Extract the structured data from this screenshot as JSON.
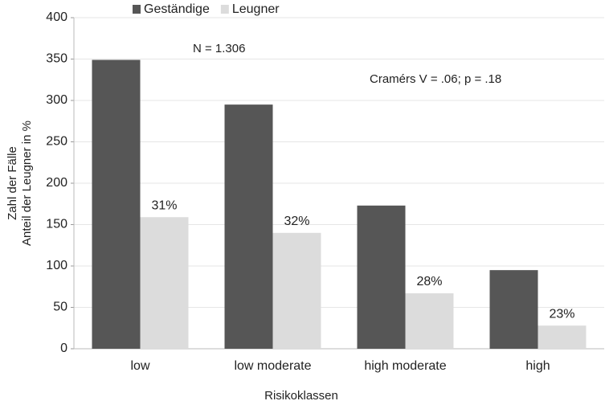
{
  "chart_data": {
    "type": "bar",
    "categories": [
      "low",
      "low moderate",
      "high moderate",
      "high"
    ],
    "series": [
      {
        "name": "Geständige",
        "color": "#565656",
        "values": [
          349,
          295,
          173,
          95
        ]
      },
      {
        "name": "Leugner",
        "color": "#dcdcdc",
        "values": [
          159,
          140,
          67,
          28
        ],
        "share_labels": [
          "31%",
          "32%",
          "28%",
          "23%"
        ]
      }
    ],
    "ylim": [
      0,
      400
    ],
    "yticks": [
      0,
      50,
      100,
      150,
      200,
      250,
      300,
      350,
      400
    ],
    "grid": true,
    "xlabel": "Risikoklassen",
    "ylabel": [
      "Zahl der Fälle",
      "Anteil der Leugner in %"
    ],
    "annotations": [
      "N = 1.306",
      "Cramérs V = .06; p = .18"
    ],
    "legend": "top-left"
  }
}
